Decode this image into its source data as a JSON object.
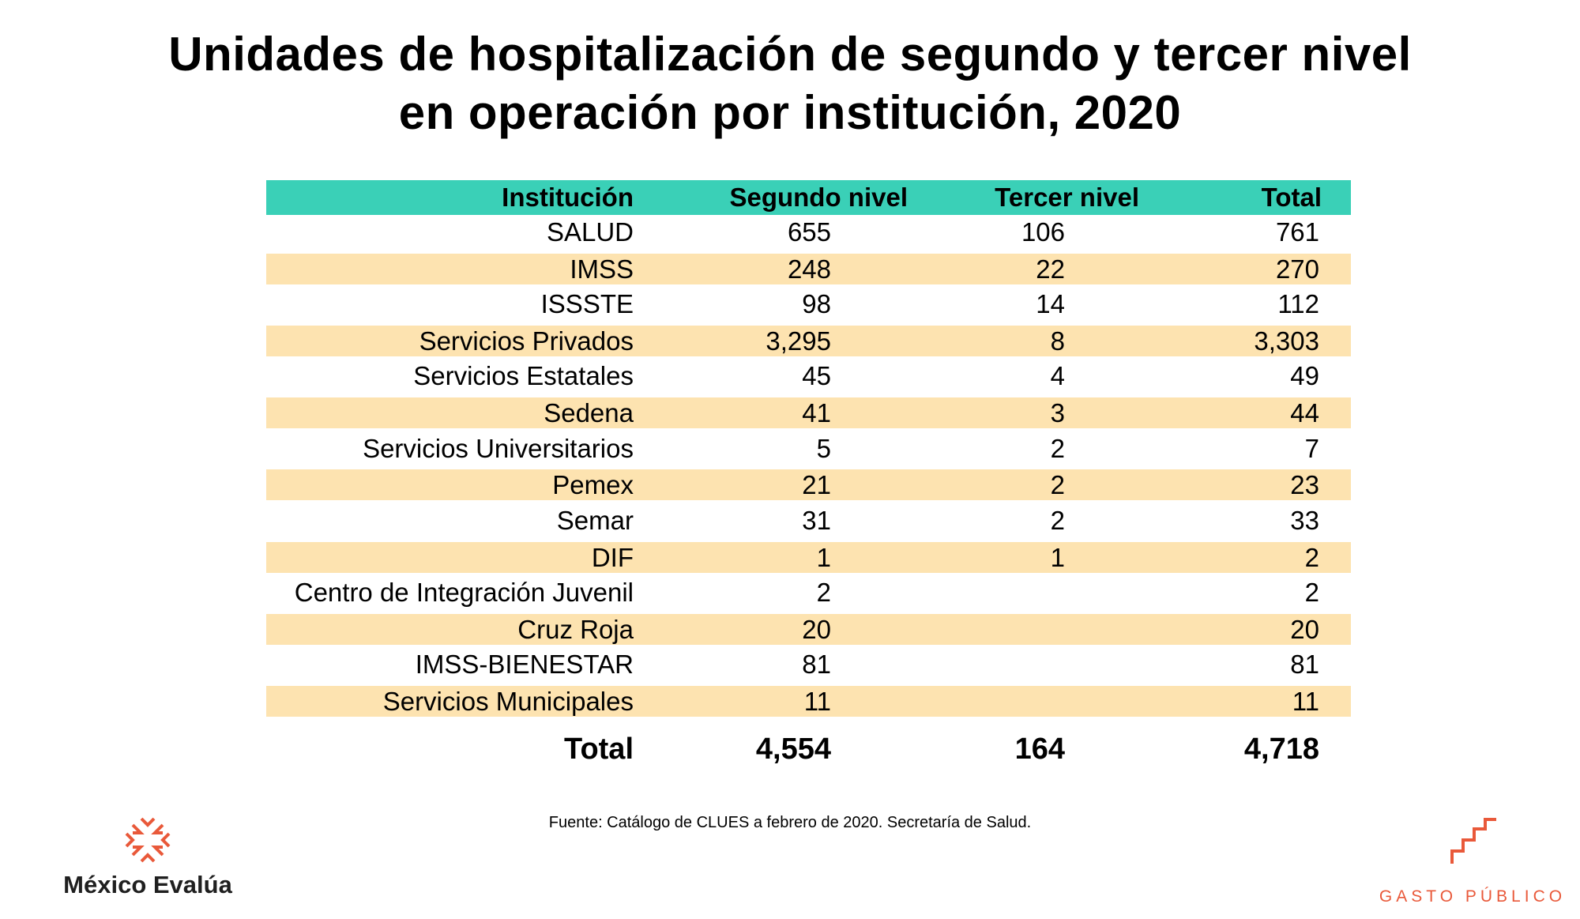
{
  "title_lines": [
    "Unidades de hospitalización de segundo y tercer nivel",
    "en operación por institución, 2020"
  ],
  "source": "Fuente: Catálogo de CLUES a febrero de 2020. Secretaría de Salud.",
  "logo_left": "México Evalúa",
  "logo_right": "GASTO PÚBLICO",
  "colors": {
    "header": "#3ad0b7",
    "band": "#fde3b0",
    "accent": "#e9593a"
  },
  "chart_data": {
    "type": "table",
    "columns": [
      "Institución",
      "Segundo nivel",
      "Tercer nivel",
      "Total"
    ],
    "rows": [
      {
        "inst": "SALUD",
        "seg": "655",
        "ter": "106",
        "tot": "761"
      },
      {
        "inst": "IMSS",
        "seg": "248",
        "ter": "22",
        "tot": "270"
      },
      {
        "inst": "ISSSTE",
        "seg": "98",
        "ter": "14",
        "tot": "112"
      },
      {
        "inst": "Servicios Privados",
        "seg": "3,295",
        "ter": "8",
        "tot": "3,303"
      },
      {
        "inst": "Servicios Estatales",
        "seg": "45",
        "ter": "4",
        "tot": "49"
      },
      {
        "inst": "Sedena",
        "seg": "41",
        "ter": "3",
        "tot": "44"
      },
      {
        "inst": "Servicios Universitarios",
        "seg": "5",
        "ter": "2",
        "tot": "7"
      },
      {
        "inst": "Pemex",
        "seg": "21",
        "ter": "2",
        "tot": "23"
      },
      {
        "inst": "Semar",
        "seg": "31",
        "ter": "2",
        "tot": "33"
      },
      {
        "inst": "DIF",
        "seg": "1",
        "ter": "1",
        "tot": "2"
      },
      {
        "inst": "Centro de Integración Juvenil",
        "seg": "2",
        "ter": "",
        "tot": "2"
      },
      {
        "inst": "Cruz Roja",
        "seg": "20",
        "ter": "",
        "tot": "20"
      },
      {
        "inst": "IMSS-BIENESTAR",
        "seg": "81",
        "ter": "",
        "tot": "81"
      },
      {
        "inst": "Servicios Municipales",
        "seg": "11",
        "ter": "",
        "tot": "11"
      }
    ],
    "total": {
      "inst": "Total",
      "seg": "4,554",
      "ter": "164",
      "tot": "4,718"
    }
  }
}
